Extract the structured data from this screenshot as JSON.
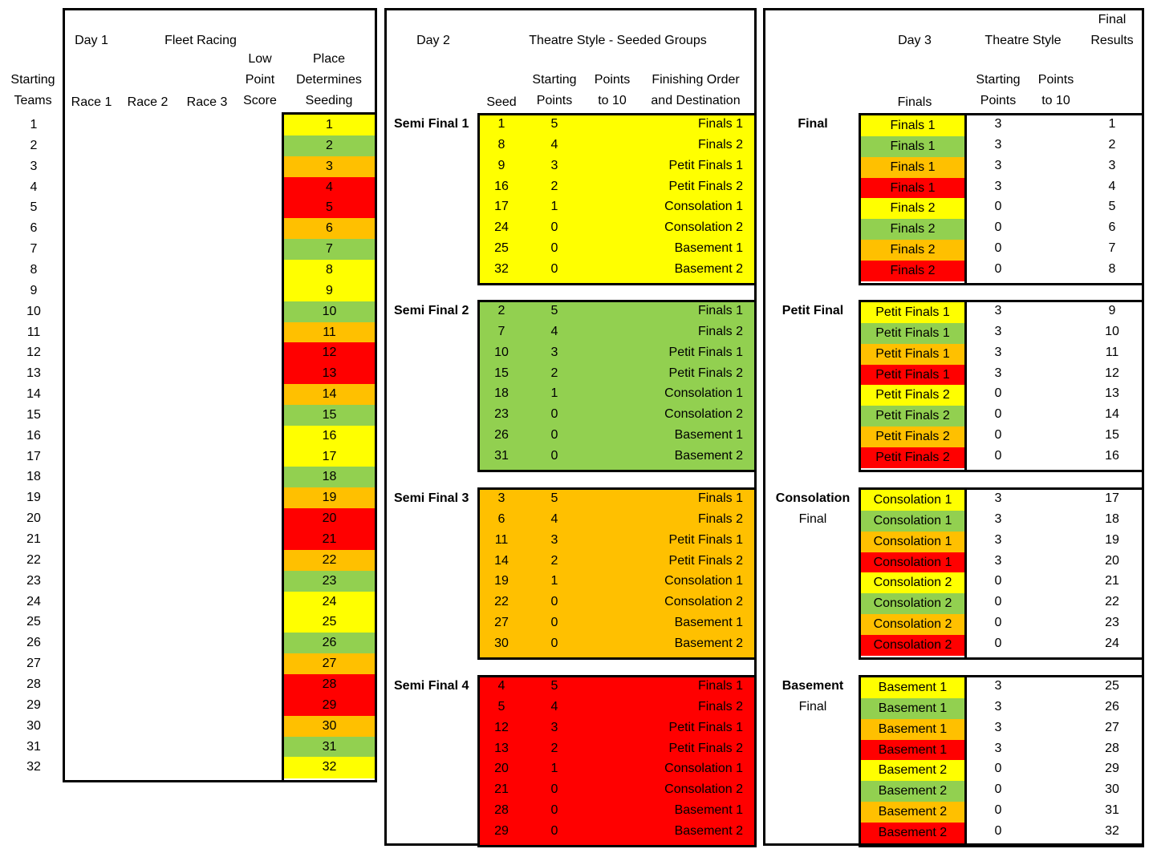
{
  "colors": {
    "yellow": "#ffff00",
    "green": "#92d050",
    "orange": "#ffc000",
    "red": "#ff0000"
  },
  "day1": {
    "h_day": "Day 1",
    "h_fleet": "Fleet Racing",
    "h_starting": "Starting",
    "h_teams": "Teams",
    "h_race1": "Race 1",
    "h_race2": "Race 2",
    "h_race3": "Race 3",
    "h_low": "Low",
    "h_point": "Point",
    "h_score": "Score",
    "h_place": "Place",
    "h_determines": "Determines",
    "h_seeding": "Seeding",
    "teams": [
      "1",
      "2",
      "3",
      "4",
      "5",
      "6",
      "7",
      "8",
      "9",
      "10",
      "11",
      "12",
      "13",
      "14",
      "15",
      "16",
      "17",
      "18",
      "19",
      "20",
      "21",
      "22",
      "23",
      "24",
      "25",
      "26",
      "27",
      "28",
      "29",
      "30",
      "31",
      "32"
    ],
    "seeding": [
      "1",
      "2",
      "3",
      "4",
      "5",
      "6",
      "7",
      "8",
      "9",
      "10",
      "11",
      "12",
      "13",
      "14",
      "15",
      "16",
      "17",
      "18",
      "19",
      "20",
      "21",
      "22",
      "23",
      "24",
      "25",
      "26",
      "27",
      "28",
      "29",
      "30",
      "31",
      "32"
    ],
    "seeding_colors": [
      "yellow",
      "green",
      "orange",
      "red",
      "red",
      "orange",
      "green",
      "yellow",
      "yellow",
      "green",
      "orange",
      "red",
      "red",
      "orange",
      "green",
      "yellow",
      "yellow",
      "green",
      "orange",
      "red",
      "red",
      "orange",
      "green",
      "yellow",
      "yellow",
      "green",
      "orange",
      "red",
      "red",
      "orange",
      "green",
      "yellow"
    ]
  },
  "day2": {
    "h_day": "Day 2",
    "h_theatre": "Theatre Style - Seeded Groups",
    "h_seed": "Seed",
    "h_starting": "Starting",
    "h_points_top": "Points",
    "h_points": "Points",
    "h_to10": "to 10",
    "h_finishing": "Finishing Order",
    "h_destination": "and Destination",
    "groups": [
      {
        "label": "Semi Final 1",
        "color": "yellow",
        "seeds": [
          "1",
          "8",
          "9",
          "16",
          "17",
          "24",
          "25",
          "32"
        ]
      },
      {
        "label": "Semi Final 2",
        "color": "green",
        "seeds": [
          "2",
          "7",
          "10",
          "15",
          "18",
          "23",
          "26",
          "31"
        ]
      },
      {
        "label": "Semi Final 3",
        "color": "orange",
        "seeds": [
          "3",
          "6",
          "11",
          "14",
          "19",
          "22",
          "27",
          "30"
        ]
      },
      {
        "label": "Semi Final 4",
        "color": "red",
        "seeds": [
          "4",
          "5",
          "12",
          "13",
          "20",
          "21",
          "28",
          "29"
        ]
      }
    ],
    "starting_points": [
      "5",
      "4",
      "3",
      "2",
      "1",
      "0",
      "0",
      "0"
    ],
    "destinations": [
      "Finals 1",
      "Finals 2",
      "Petit Finals 1",
      "Petit Finals 2",
      "Consolation 1",
      "Consolation 2",
      "Basement 1",
      "Basement 2"
    ]
  },
  "day3": {
    "h_day": "Day 3",
    "h_theatre": "Theatre Style",
    "h_final": "Final",
    "h_results": "Results",
    "h_finals": "Finals",
    "h_starting": "Starting",
    "h_points_top": "Points",
    "h_points": "Points",
    "h_to10": "to 10",
    "groups": [
      {
        "label": "Final",
        "sub": "",
        "name": "Finals",
        "results": [
          "1",
          "2",
          "3",
          "4",
          "5",
          "6",
          "7",
          "8"
        ]
      },
      {
        "label": "Petit Final",
        "sub": "",
        "name": "Petit Finals",
        "results": [
          "9",
          "10",
          "11",
          "12",
          "13",
          "14",
          "15",
          "16"
        ]
      },
      {
        "label": "Consolation",
        "sub": "Final",
        "name": "Consolation",
        "results": [
          "17",
          "18",
          "19",
          "20",
          "21",
          "22",
          "23",
          "24"
        ]
      },
      {
        "label": "Basement",
        "sub": "Final",
        "name": "Basement",
        "results": [
          "25",
          "26",
          "27",
          "28",
          "29",
          "30",
          "31",
          "32"
        ]
      }
    ],
    "entries": [
      [
        "Finals 1",
        "Finals 1",
        "Finals 1",
        "Finals 1",
        "Finals 2",
        "Finals 2",
        "Finals 2",
        "Finals 2"
      ],
      [
        "Petit Finals 1",
        "Petit Finals 1",
        "Petit Finals 1",
        "Petit Finals 1",
        "Petit Finals 2",
        "Petit Finals 2",
        "Petit Finals 2",
        "Petit Finals 2"
      ],
      [
        "Consolation 1",
        "Consolation 1",
        "Consolation 1",
        "Consolation 1",
        "Consolation 2",
        "Consolation 2",
        "Consolation 2",
        "Consolation 2"
      ],
      [
        "Basement 1",
        "Basement 1",
        "Basement 1",
        "Basement 1",
        "Basement 2",
        "Basement 2",
        "Basement 2",
        "Basement 2"
      ]
    ],
    "entry_colors": [
      "yellow",
      "green",
      "orange",
      "red",
      "yellow",
      "green",
      "orange",
      "red"
    ],
    "starting_points": [
      "3",
      "3",
      "3",
      "3",
      "0",
      "0",
      "0",
      "0"
    ]
  }
}
